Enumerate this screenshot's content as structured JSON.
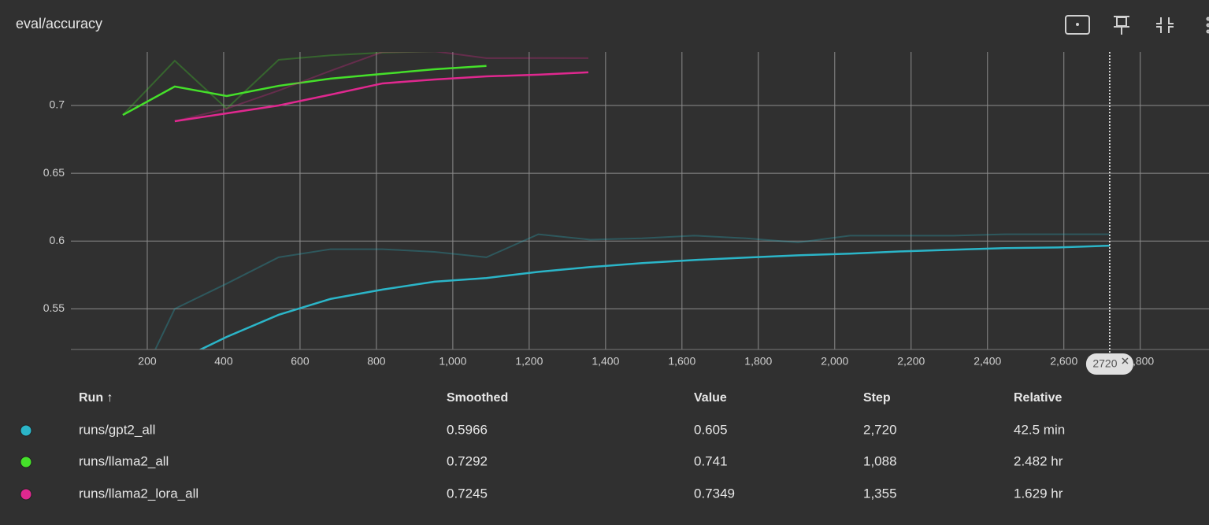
{
  "chart_data": {
    "type": "line",
    "title": "eval/accuracy",
    "xlim": [
      0,
      2980
    ],
    "ylim": [
      0.52,
      0.7395
    ],
    "xticks": [
      200,
      400,
      600,
      800,
      {
        "value": 1000,
        "label": "1,000"
      },
      {
        "value": 1200,
        "label": "1,200"
      },
      {
        "value": 1400,
        "label": "1,400"
      },
      {
        "value": 1600,
        "label": "1,600"
      },
      {
        "value": 1800,
        "label": "1,800"
      },
      {
        "value": 2000,
        "label": "2,000"
      },
      {
        "value": 2200,
        "label": "2,200"
      },
      {
        "value": 2400,
        "label": "2,400"
      },
      {
        "value": 2600,
        "label": "2,600"
      },
      {
        "value": 2800,
        "label": "2,800"
      }
    ],
    "yticks": [
      0.55,
      0.6,
      0.65,
      0.7
    ],
    "grid": true,
    "hover_step": 2720,
    "series": [
      {
        "name": "runs/gpt2_all",
        "color": "#2bb5c8",
        "x": [
          136,
          272,
          408,
          544,
          680,
          816,
          952,
          1088,
          1224,
          1360,
          1496,
          1632,
          1768,
          1904,
          2040,
          2176,
          2312,
          2448,
          2584,
          2720
        ],
        "values": [
          0.492,
          0.5107,
          0.5293,
          0.5456,
          0.5573,
          0.5642,
          0.57,
          0.5727,
          0.5773,
          0.5808,
          0.5837,
          0.586,
          0.5878,
          0.5895,
          0.5907,
          0.5924,
          0.5936,
          0.5948,
          0.5953,
          0.5966
        ],
        "raw": [
          0.47,
          0.55,
          0.5686,
          0.588,
          0.594,
          0.594,
          0.592,
          0.588,
          0.605,
          0.601,
          0.602,
          0.604,
          0.602,
          0.599,
          0.604,
          0.604,
          0.604,
          0.605,
          0.605,
          0.605
        ]
      },
      {
        "name": "runs/llama2_all",
        "color": "#45e02a",
        "x": [
          136,
          272,
          408,
          544,
          680,
          816,
          952,
          1088
        ],
        "values": [
          0.693,
          0.714,
          0.707,
          0.7145,
          0.7198,
          0.7233,
          0.7267,
          0.7292
        ],
        "raw": [
          0.693,
          0.733,
          0.6977,
          0.7337,
          0.737,
          0.739,
          0.74,
          0.741
        ]
      },
      {
        "name": "runs/llama2_lora_all",
        "color": "#e0288f",
        "x": [
          272,
          408,
          544,
          680,
          816,
          952,
          1088,
          1224,
          1355
        ],
        "values": [
          0.6884,
          0.6942,
          0.7,
          0.708,
          0.7163,
          0.7192,
          0.7215,
          0.7227,
          0.7245
        ],
        "raw": [
          0.6884,
          0.6977,
          0.711,
          0.7256,
          0.7395,
          0.74,
          0.7349,
          0.735,
          0.7349
        ]
      }
    ]
  },
  "table": {
    "columns": [
      "Run ↑",
      "Smoothed",
      "Value",
      "Step",
      "Relative"
    ],
    "rows": [
      [
        "runs/gpt2_all",
        "0.5966",
        "0.605",
        "2,720",
        "42.5 min"
      ],
      [
        "runs/llama2_all",
        "0.7292",
        "0.741",
        "1,088",
        "2.482 hr"
      ],
      [
        "runs/llama2_lora_all",
        "0.7245",
        "0.7349",
        "1,355",
        "1.629 hr"
      ]
    ]
  }
}
